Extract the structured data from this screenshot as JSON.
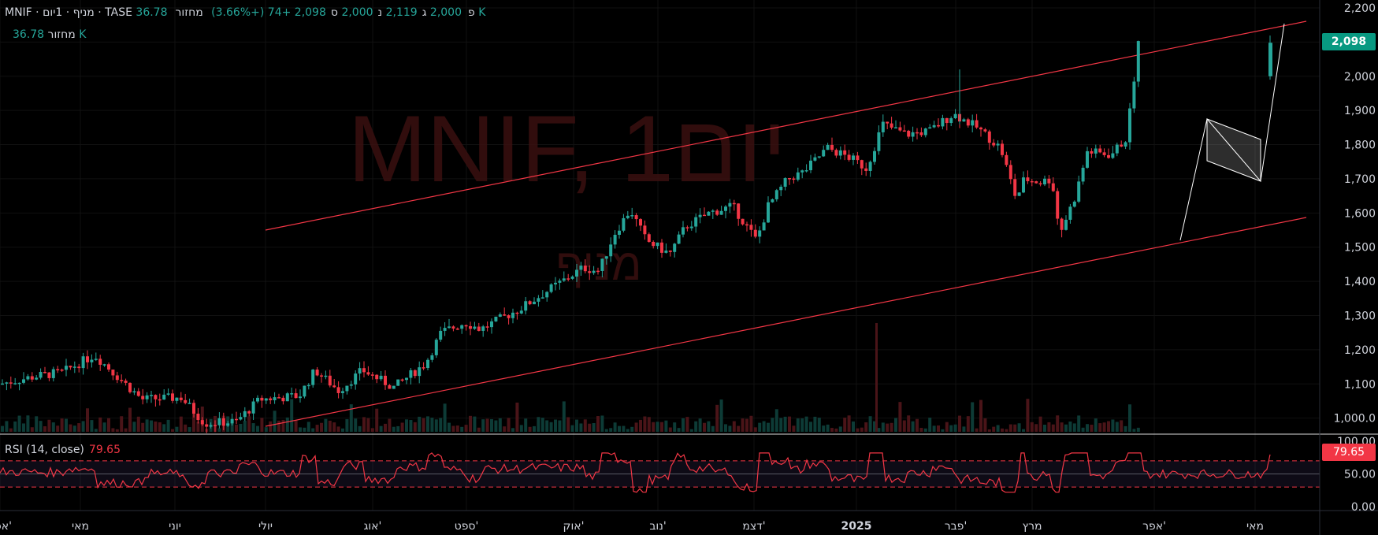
{
  "header": {
    "symbol_line": "MNIF · מניף · 1יום · TASE",
    "open_label": "פ",
    "open": "2,000",
    "high_label": "ג",
    "high": "2,119",
    "low_label": "נ",
    "low": "2,000",
    "close_label": "ס",
    "close": "2,098",
    "change": "+74 (+3.66%)",
    "volume_label": "מחזור",
    "volume": "36.78 K"
  },
  "volume_legend": {
    "label": "מחזור",
    "value": "36.78 K"
  },
  "watermark": {
    "title": "MNIF, 1יום",
    "subtitle": "מניף"
  },
  "rsi": {
    "title": "RSI (14, close)",
    "value": "79.65"
  },
  "price_tag": "2,098",
  "colors": {
    "up": "#26a69a",
    "down": "#f23645",
    "up_tag": "#089981",
    "channel": "#f23645",
    "rsi_line": "#f23645"
  },
  "chart_data": {
    "type": "candlestick",
    "y_axis": {
      "ticks": [
        "2,200",
        "2,100",
        "2,000",
        "1,900",
        "1,800",
        "1,700",
        "1,600",
        "1,500",
        "1,400",
        "1,300",
        "1,200",
        "1,100",
        "1,000.0"
      ],
      "ylim": [
        960,
        2200
      ]
    },
    "rsi_axis": {
      "ticks": [
        "100.00",
        "50.00",
        "0.00"
      ],
      "bands": [
        70,
        30
      ]
    },
    "x_axis": {
      "ticks": [
        "אפר'",
        "מאי",
        "יוני",
        "יולי",
        "אוג'",
        "ספט'",
        "אוק'",
        "נוב'",
        "דצמ'",
        "2025",
        "פבר'",
        "מרץ",
        "אפר'",
        "מאי"
      ]
    },
    "price_path": [
      {
        "t": 0,
        "v": 1100
      },
      {
        "t": 40,
        "v": 1120
      },
      {
        "t": 80,
        "v": 1135
      },
      {
        "t": 120,
        "v": 1185
      },
      {
        "t": 150,
        "v": 1120
      },
      {
        "t": 180,
        "v": 1055
      },
      {
        "t": 230,
        "v": 1060
      },
      {
        "t": 260,
        "v": 985
      },
      {
        "t": 300,
        "v": 990
      },
      {
        "t": 330,
        "v": 1055
      },
      {
        "t": 380,
        "v": 1065
      },
      {
        "t": 400,
        "v": 1140
      },
      {
        "t": 430,
        "v": 1080
      },
      {
        "t": 460,
        "v": 1140
      },
      {
        "t": 500,
        "v": 1090
      },
      {
        "t": 540,
        "v": 1160
      },
      {
        "t": 560,
        "v": 1250
      },
      {
        "t": 590,
        "v": 1280
      },
      {
        "t": 610,
        "v": 1260
      },
      {
        "t": 660,
        "v": 1320
      },
      {
        "t": 700,
        "v": 1380
      },
      {
        "t": 740,
        "v": 1440
      },
      {
        "t": 760,
        "v": 1430
      },
      {
        "t": 780,
        "v": 1540
      },
      {
        "t": 800,
        "v": 1610
      },
      {
        "t": 820,
        "v": 1520
      },
      {
        "t": 850,
        "v": 1480
      },
      {
        "t": 870,
        "v": 1560
      },
      {
        "t": 900,
        "v": 1600
      },
      {
        "t": 930,
        "v": 1620
      },
      {
        "t": 960,
        "v": 1520
      },
      {
        "t": 975,
        "v": 1620
      },
      {
        "t": 1000,
        "v": 1700
      },
      {
        "t": 1020,
        "v": 1720
      },
      {
        "t": 1050,
        "v": 1790
      },
      {
        "t": 1080,
        "v": 1760
      },
      {
        "t": 1100,
        "v": 1730
      },
      {
        "t": 1120,
        "v": 1860
      },
      {
        "t": 1150,
        "v": 1830
      },
      {
        "t": 1180,
        "v": 1840
      },
      {
        "t": 1210,
        "v": 1890
      },
      {
        "t": 1240,
        "v": 1850
      },
      {
        "t": 1270,
        "v": 1790
      },
      {
        "t": 1290,
        "v": 1640
      },
      {
        "t": 1300,
        "v": 1700
      },
      {
        "t": 1320,
        "v": 1690
      },
      {
        "t": 1335,
        "v": 1700
      },
      {
        "t": 1345,
        "v": 1540
      },
      {
        "t": 1365,
        "v": 1650
      },
      {
        "t": 1380,
        "v": 1780
      },
      {
        "t": 1410,
        "v": 1770
      },
      {
        "t": 1430,
        "v": 1820
      },
      {
        "t": 1445,
        "v": 2098
      }
    ]
  }
}
